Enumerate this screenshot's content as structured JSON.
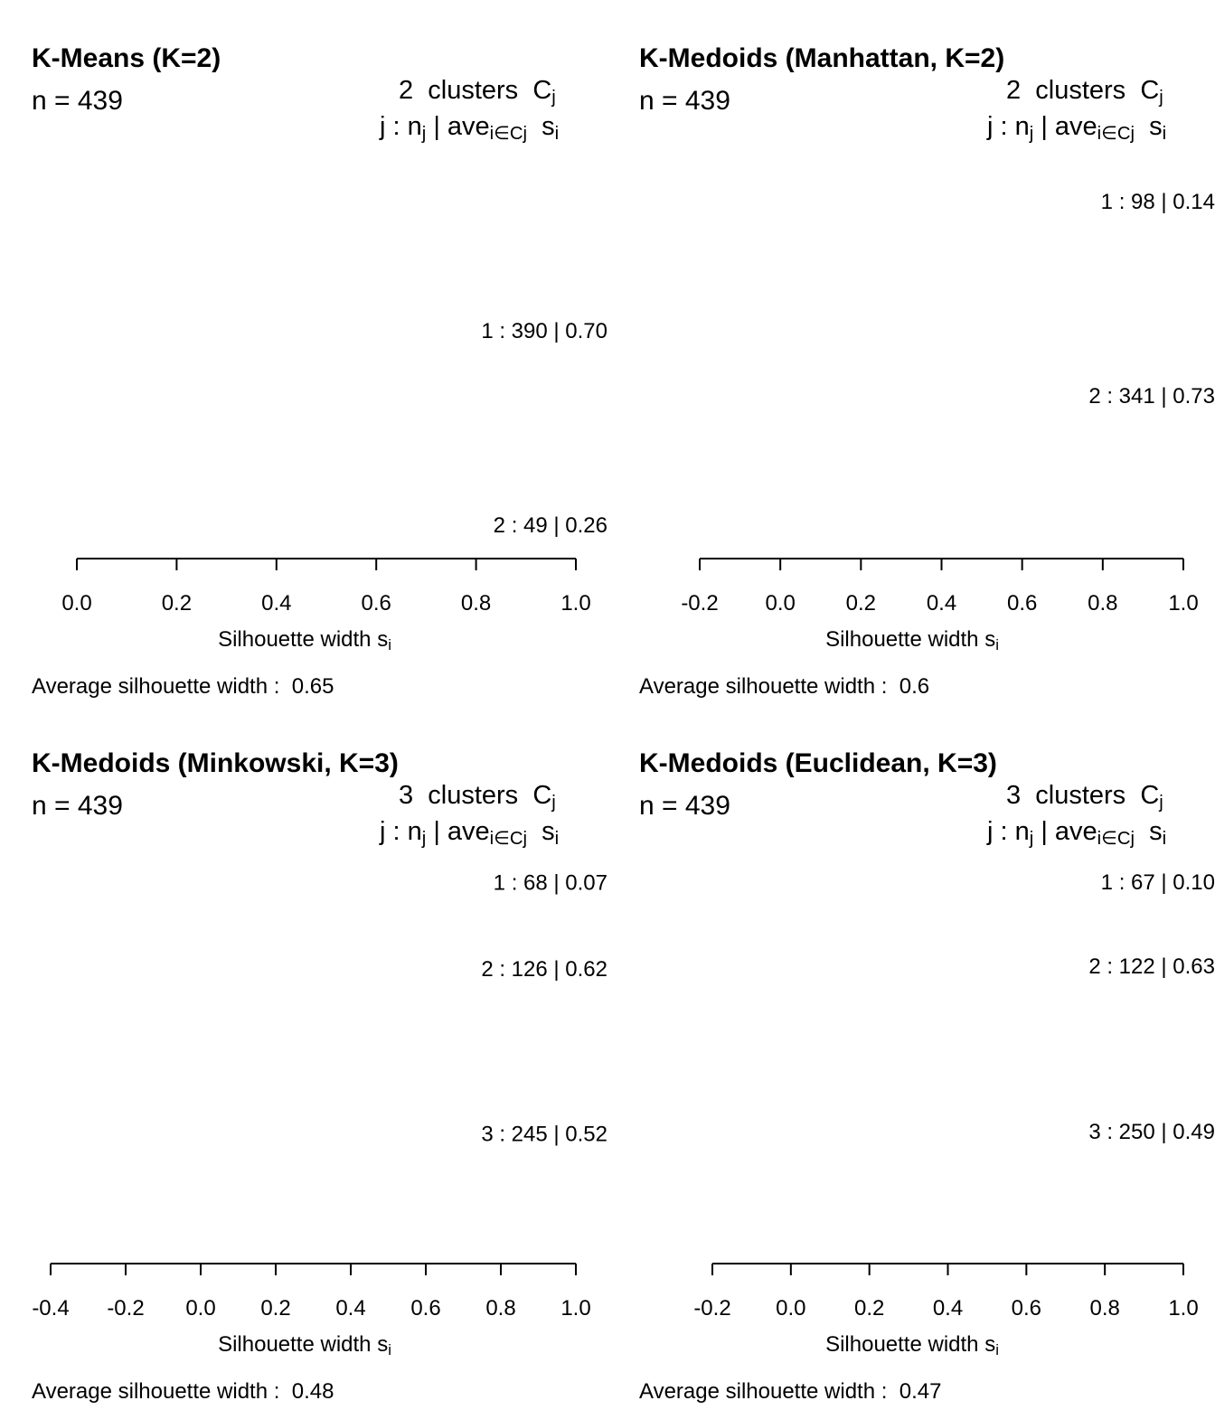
{
  "figure": {
    "xlabel_main": "Silhouette width s",
    "xlabel_sub": "i",
    "avg_prefix": "Average silhouette width :",
    "header_clusters_word": "clusters",
    "header_C": "C",
    "header_j": "j",
    "header_row2_prefix": "j :  n",
    "header_row2_mid": " | ave",
    "header_row2_sub": "i∈Cj",
    "header_row2_s": "s",
    "header_row2_s_sub": "i"
  },
  "chart_data": [
    {
      "type": "bar",
      "title": "K-Means (K=2)",
      "n_label": "n = 439",
      "n": 439,
      "k": 2,
      "xlabel": "Silhouette width si",
      "xlim": [
        0.0,
        1.0
      ],
      "xticks": [
        "0.0",
        "0.2",
        "0.4",
        "0.6",
        "0.8",
        "1.0"
      ],
      "tick_values": [
        0.0,
        0.2,
        0.4,
        0.6,
        0.8,
        1.0
      ],
      "clusters": [
        {
          "j": 1,
          "n": 390,
          "ave": "0.70"
        },
        {
          "j": 2,
          "n": 49,
          "ave": "0.26"
        }
      ],
      "average_silhouette_width": "0.65"
    },
    {
      "type": "bar",
      "title": "K-Medoids (Manhattan, K=2)",
      "n_label": "n = 439",
      "n": 439,
      "k": 2,
      "xlabel": "Silhouette width si",
      "xlim": [
        -0.2,
        1.0
      ],
      "xticks": [
        "-0.2",
        "0.0",
        "0.2",
        "0.4",
        "0.6",
        "0.8",
        "1.0"
      ],
      "tick_values": [
        -0.2,
        0.0,
        0.2,
        0.4,
        0.6,
        0.8,
        1.0
      ],
      "clusters": [
        {
          "j": 1,
          "n": 98,
          "ave": "0.14"
        },
        {
          "j": 2,
          "n": 341,
          "ave": "0.73"
        }
      ],
      "average_silhouette_width": "0.6"
    },
    {
      "type": "bar",
      "title": "K-Medoids (Minkowski, K=3)",
      "n_label": "n = 439",
      "n": 439,
      "k": 3,
      "xlabel": "Silhouette width si",
      "xlim": [
        -0.4,
        1.0
      ],
      "xticks": [
        "-0.4",
        "-0.2",
        "0.0",
        "0.2",
        "0.4",
        "0.6",
        "0.8",
        "1.0"
      ],
      "tick_values": [
        -0.4,
        -0.2,
        0.0,
        0.2,
        0.4,
        0.6,
        0.8,
        1.0
      ],
      "clusters": [
        {
          "j": 1,
          "n": 68,
          "ave": "0.07"
        },
        {
          "j": 2,
          "n": 126,
          "ave": "0.62"
        },
        {
          "j": 3,
          "n": 245,
          "ave": "0.52"
        }
      ],
      "average_silhouette_width": "0.48"
    },
    {
      "type": "bar",
      "title": "K-Medoids (Euclidean, K=3)",
      "n_label": "n = 439",
      "n": 439,
      "k": 3,
      "xlabel": "Silhouette width si",
      "xlim": [
        -0.2,
        1.0
      ],
      "xticks": [
        "-0.2",
        "0.0",
        "0.2",
        "0.4",
        "0.6",
        "0.8",
        "1.0"
      ],
      "tick_values": [
        -0.2,
        0.0,
        0.2,
        0.4,
        0.6,
        0.8,
        1.0
      ],
      "clusters": [
        {
          "j": 1,
          "n": 67,
          "ave": "0.10"
        },
        {
          "j": 2,
          "n": 122,
          "ave": "0.63"
        },
        {
          "j": 3,
          "n": 250,
          "ave": "0.49"
        }
      ],
      "average_silhouette_width": "0.47"
    }
  ]
}
